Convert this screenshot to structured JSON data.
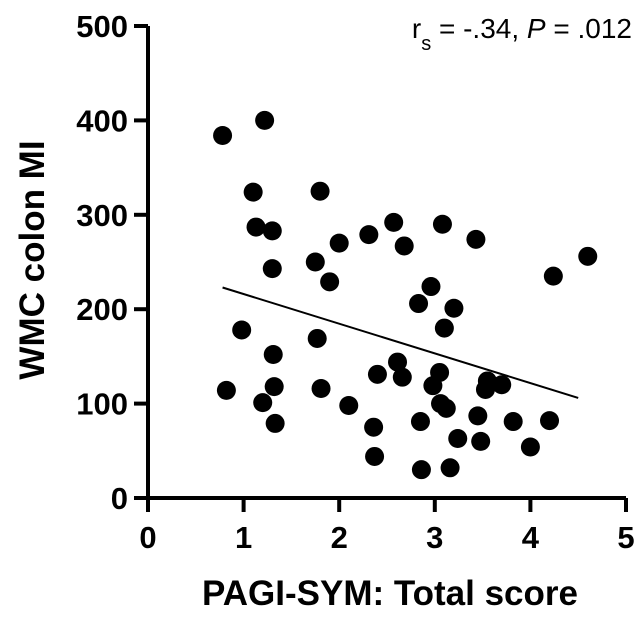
{
  "chart_data": {
    "type": "scatter",
    "xlabel": "PAGI-SYM: Total score",
    "ylabel": "WMC colon MI",
    "xlim": [
      0,
      5
    ],
    "ylim": [
      0,
      500
    ],
    "xticks": [
      "0",
      "1",
      "2",
      "3",
      "4",
      "5"
    ],
    "yticks": [
      "0",
      "100",
      "200",
      "300",
      "400",
      "500"
    ],
    "annotation": {
      "r_symbol": "r",
      "r_subscript": "s",
      "r_value": " = -.34, ",
      "p_symbol": "P",
      "p_value": " = .012"
    },
    "trendline": {
      "x": [
        0.78,
        4.5
      ],
      "y": [
        223,
        106
      ]
    },
    "series": [
      {
        "x": [
          0.78,
          0.82,
          0.98,
          1.1,
          1.13,
          1.2,
          1.22,
          1.3,
          1.3,
          1.31,
          1.32,
          1.33,
          1.75,
          1.77,
          1.8,
          1.81,
          1.9,
          2.0,
          2.1,
          2.31,
          2.36,
          2.37,
          2.4,
          2.57,
          2.61,
          2.66,
          2.68,
          2.83,
          2.85,
          2.86,
          2.96,
          2.98,
          3.05,
          3.06,
          3.08,
          3.1,
          3.12,
          3.16,
          3.2,
          3.24,
          3.43,
          3.45,
          3.48,
          3.53,
          3.55,
          3.7,
          3.82,
          4.0,
          4.2,
          4.24,
          4.6
        ],
        "y": [
          384,
          114,
          178,
          324,
          287,
          101,
          400,
          283,
          243,
          152,
          118,
          79,
          250,
          169,
          325,
          116,
          229,
          270,
          98,
          279,
          75,
          44,
          131,
          292,
          144,
          128,
          267,
          206,
          81,
          30,
          224,
          119,
          133,
          100,
          290,
          180,
          95,
          32,
          201,
          63,
          274,
          87,
          60,
          115,
          124,
          120,
          81,
          54,
          82,
          235,
          256
        ]
      }
    ]
  }
}
